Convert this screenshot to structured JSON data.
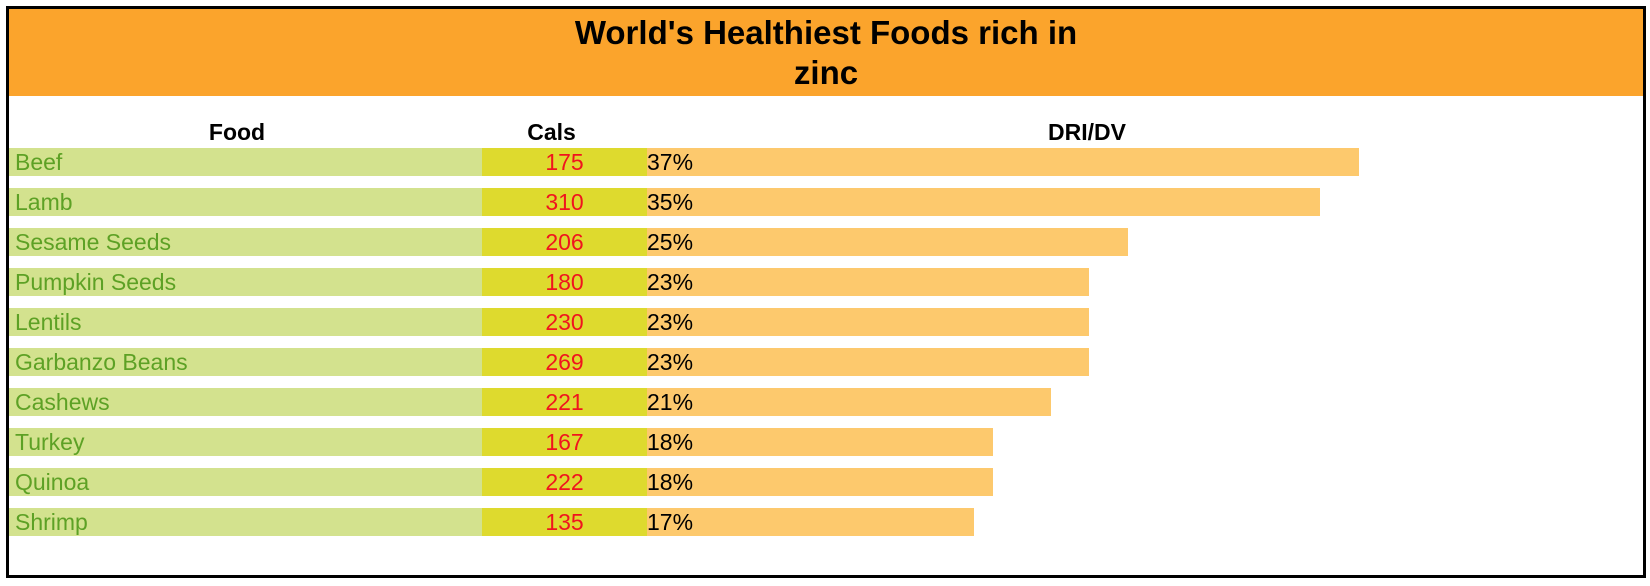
{
  "chart_data": {
    "type": "table",
    "title_lines": [
      "World's Healthiest Foods rich in",
      "zinc"
    ],
    "columns": [
      "Food",
      "Cals",
      "DRI/DV"
    ],
    "dv_unit": "%",
    "dv_scale_max": 52,
    "rows": [
      {
        "food": "Beef",
        "cals": 175,
        "dv": 37
      },
      {
        "food": "Lamb",
        "cals": 310,
        "dv": 35
      },
      {
        "food": "Sesame Seeds",
        "cals": 206,
        "dv": 25
      },
      {
        "food": "Pumpkin Seeds",
        "cals": 180,
        "dv": 23
      },
      {
        "food": "Lentils",
        "cals": 230,
        "dv": 23
      },
      {
        "food": "Garbanzo Beans",
        "cals": 269,
        "dv": 23
      },
      {
        "food": "Cashews",
        "cals": 221,
        "dv": 21
      },
      {
        "food": "Turkey",
        "cals": 167,
        "dv": 18
      },
      {
        "food": "Quinoa",
        "cals": 222,
        "dv": 18
      },
      {
        "food": "Shrimp",
        "cals": 135,
        "dv": 17
      }
    ]
  },
  "colors": {
    "title_bg": "#FBA42C",
    "food_bg": "#D3E28E",
    "food_text": "#5DA125",
    "cals_bg": "#DEDA2E",
    "cals_text": "#F0141E",
    "dv_bar": "#FDC96D"
  }
}
